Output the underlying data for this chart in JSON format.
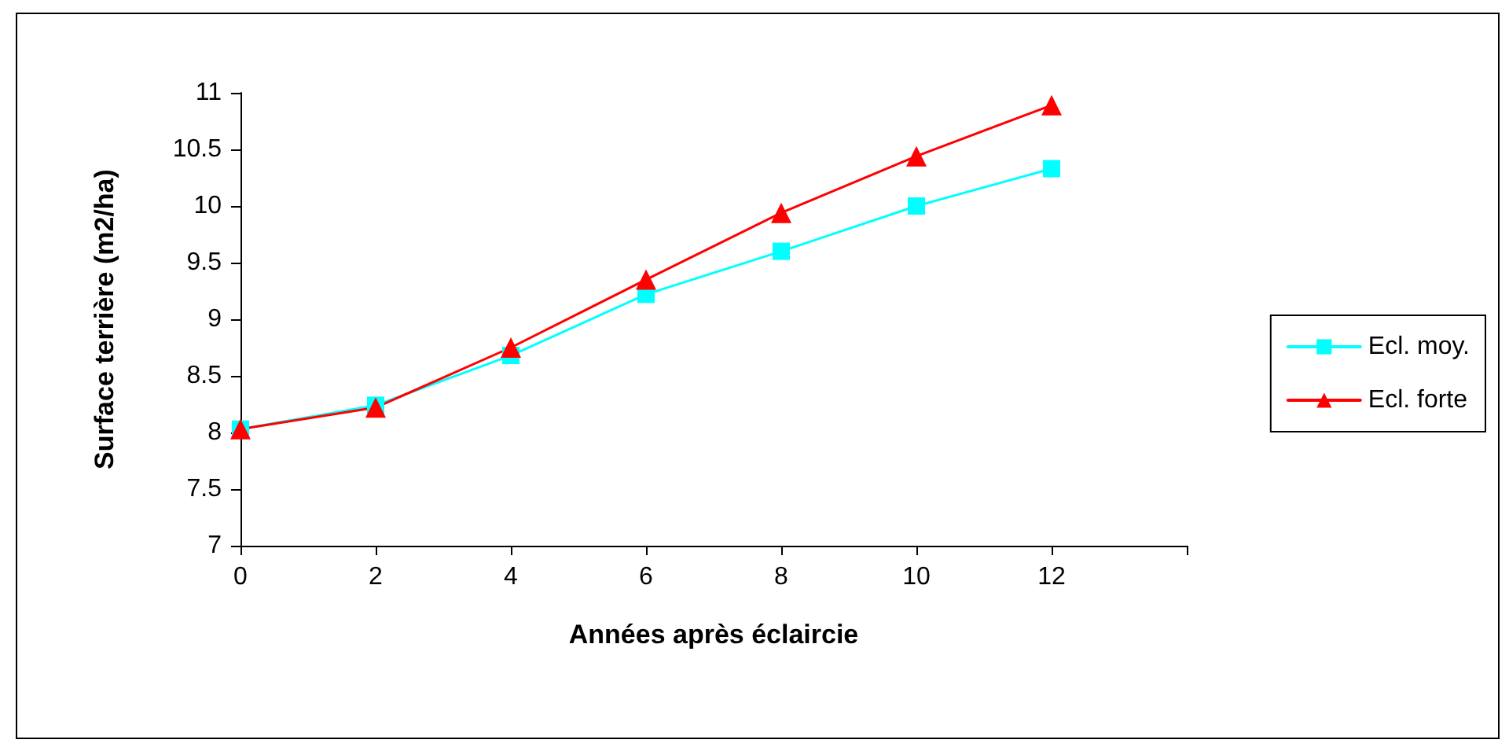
{
  "chart_data": {
    "type": "line",
    "xlabel": "Années après éclaircie",
    "ylabel": "Surface terrière (m2/ha)",
    "x": [
      0,
      2,
      4,
      6,
      8,
      10,
      12
    ],
    "series": [
      {
        "name": "Ecl. moy.",
        "color": "#00ffff",
        "marker": "square",
        "values": [
          8.03,
          8.24,
          8.68,
          9.22,
          9.6,
          10.0,
          10.33
        ]
      },
      {
        "name": "Ecl. forte",
        "color": "#ff0000",
        "marker": "triangle",
        "values": [
          8.03,
          8.22,
          8.75,
          9.35,
          9.94,
          10.44,
          10.89
        ]
      }
    ],
    "xlim": [
      0,
      14
    ],
    "xticks": [
      0,
      2,
      4,
      6,
      8,
      10,
      12,
      {
        "value": 14,
        "label": null
      }
    ],
    "ylim": [
      7,
      11
    ],
    "yticks": [
      7,
      7.5,
      8,
      8.5,
      9,
      9.5,
      10,
      10.5,
      11
    ],
    "grid": false,
    "legend": "right",
    "line_style": "solid"
  }
}
